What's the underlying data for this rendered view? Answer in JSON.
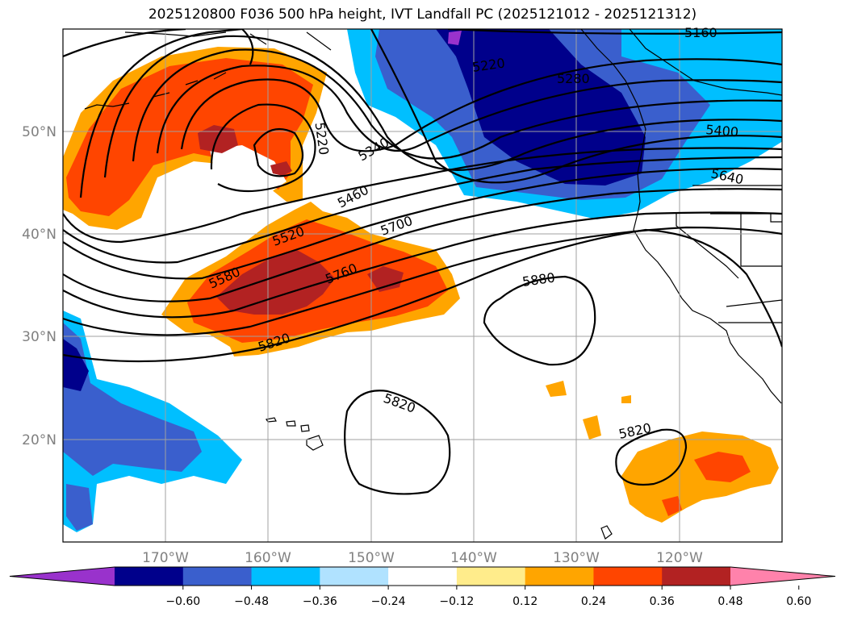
{
  "title": "2025120800 F036 500 hPa height, IVT Landfall PC (2025121012 - 2025121312)",
  "lon_labels": [
    "170°W",
    "160°W",
    "150°W",
    "140°W",
    "130°W",
    "120°W"
  ],
  "lat_labels": [
    "50°N",
    "40°N",
    "30°N",
    "20°N"
  ],
  "colorbar": {
    "ticks": [
      "−0.60",
      "−0.48",
      "−0.36",
      "−0.24",
      "−0.12",
      "0.12",
      "0.24",
      "0.36",
      "0.48",
      "0.60"
    ],
    "colors": [
      "#9932cc",
      "#00008b",
      "#3a5fcd",
      "#00bfff",
      "#b0e2ff",
      "#ffffff",
      "#ffec8b",
      "#ffa500",
      "#ff4500",
      "#b22222",
      "#ff82ab"
    ]
  },
  "contour_labels": [
    {
      "id": "5160",
      "text": "5160"
    },
    {
      "id": "5220a",
      "text": "5220"
    },
    {
      "id": "5280",
      "text": "5280"
    },
    {
      "id": "5220b",
      "text": "5220"
    },
    {
      "id": "5340",
      "text": "5340"
    },
    {
      "id": "5400",
      "text": "5400"
    },
    {
      "id": "5460",
      "text": "5460"
    },
    {
      "id": "5640",
      "text": "5640"
    },
    {
      "id": "5520",
      "text": "5520"
    },
    {
      "id": "5700",
      "text": "5700"
    },
    {
      "id": "5580",
      "text": "5580"
    },
    {
      "id": "5760",
      "text": "5760"
    },
    {
      "id": "5880",
      "text": "5880"
    },
    {
      "id": "5820a",
      "text": "5820"
    },
    {
      "id": "5820b",
      "text": "5820"
    },
    {
      "id": "5820c",
      "text": "5820"
    }
  ]
}
